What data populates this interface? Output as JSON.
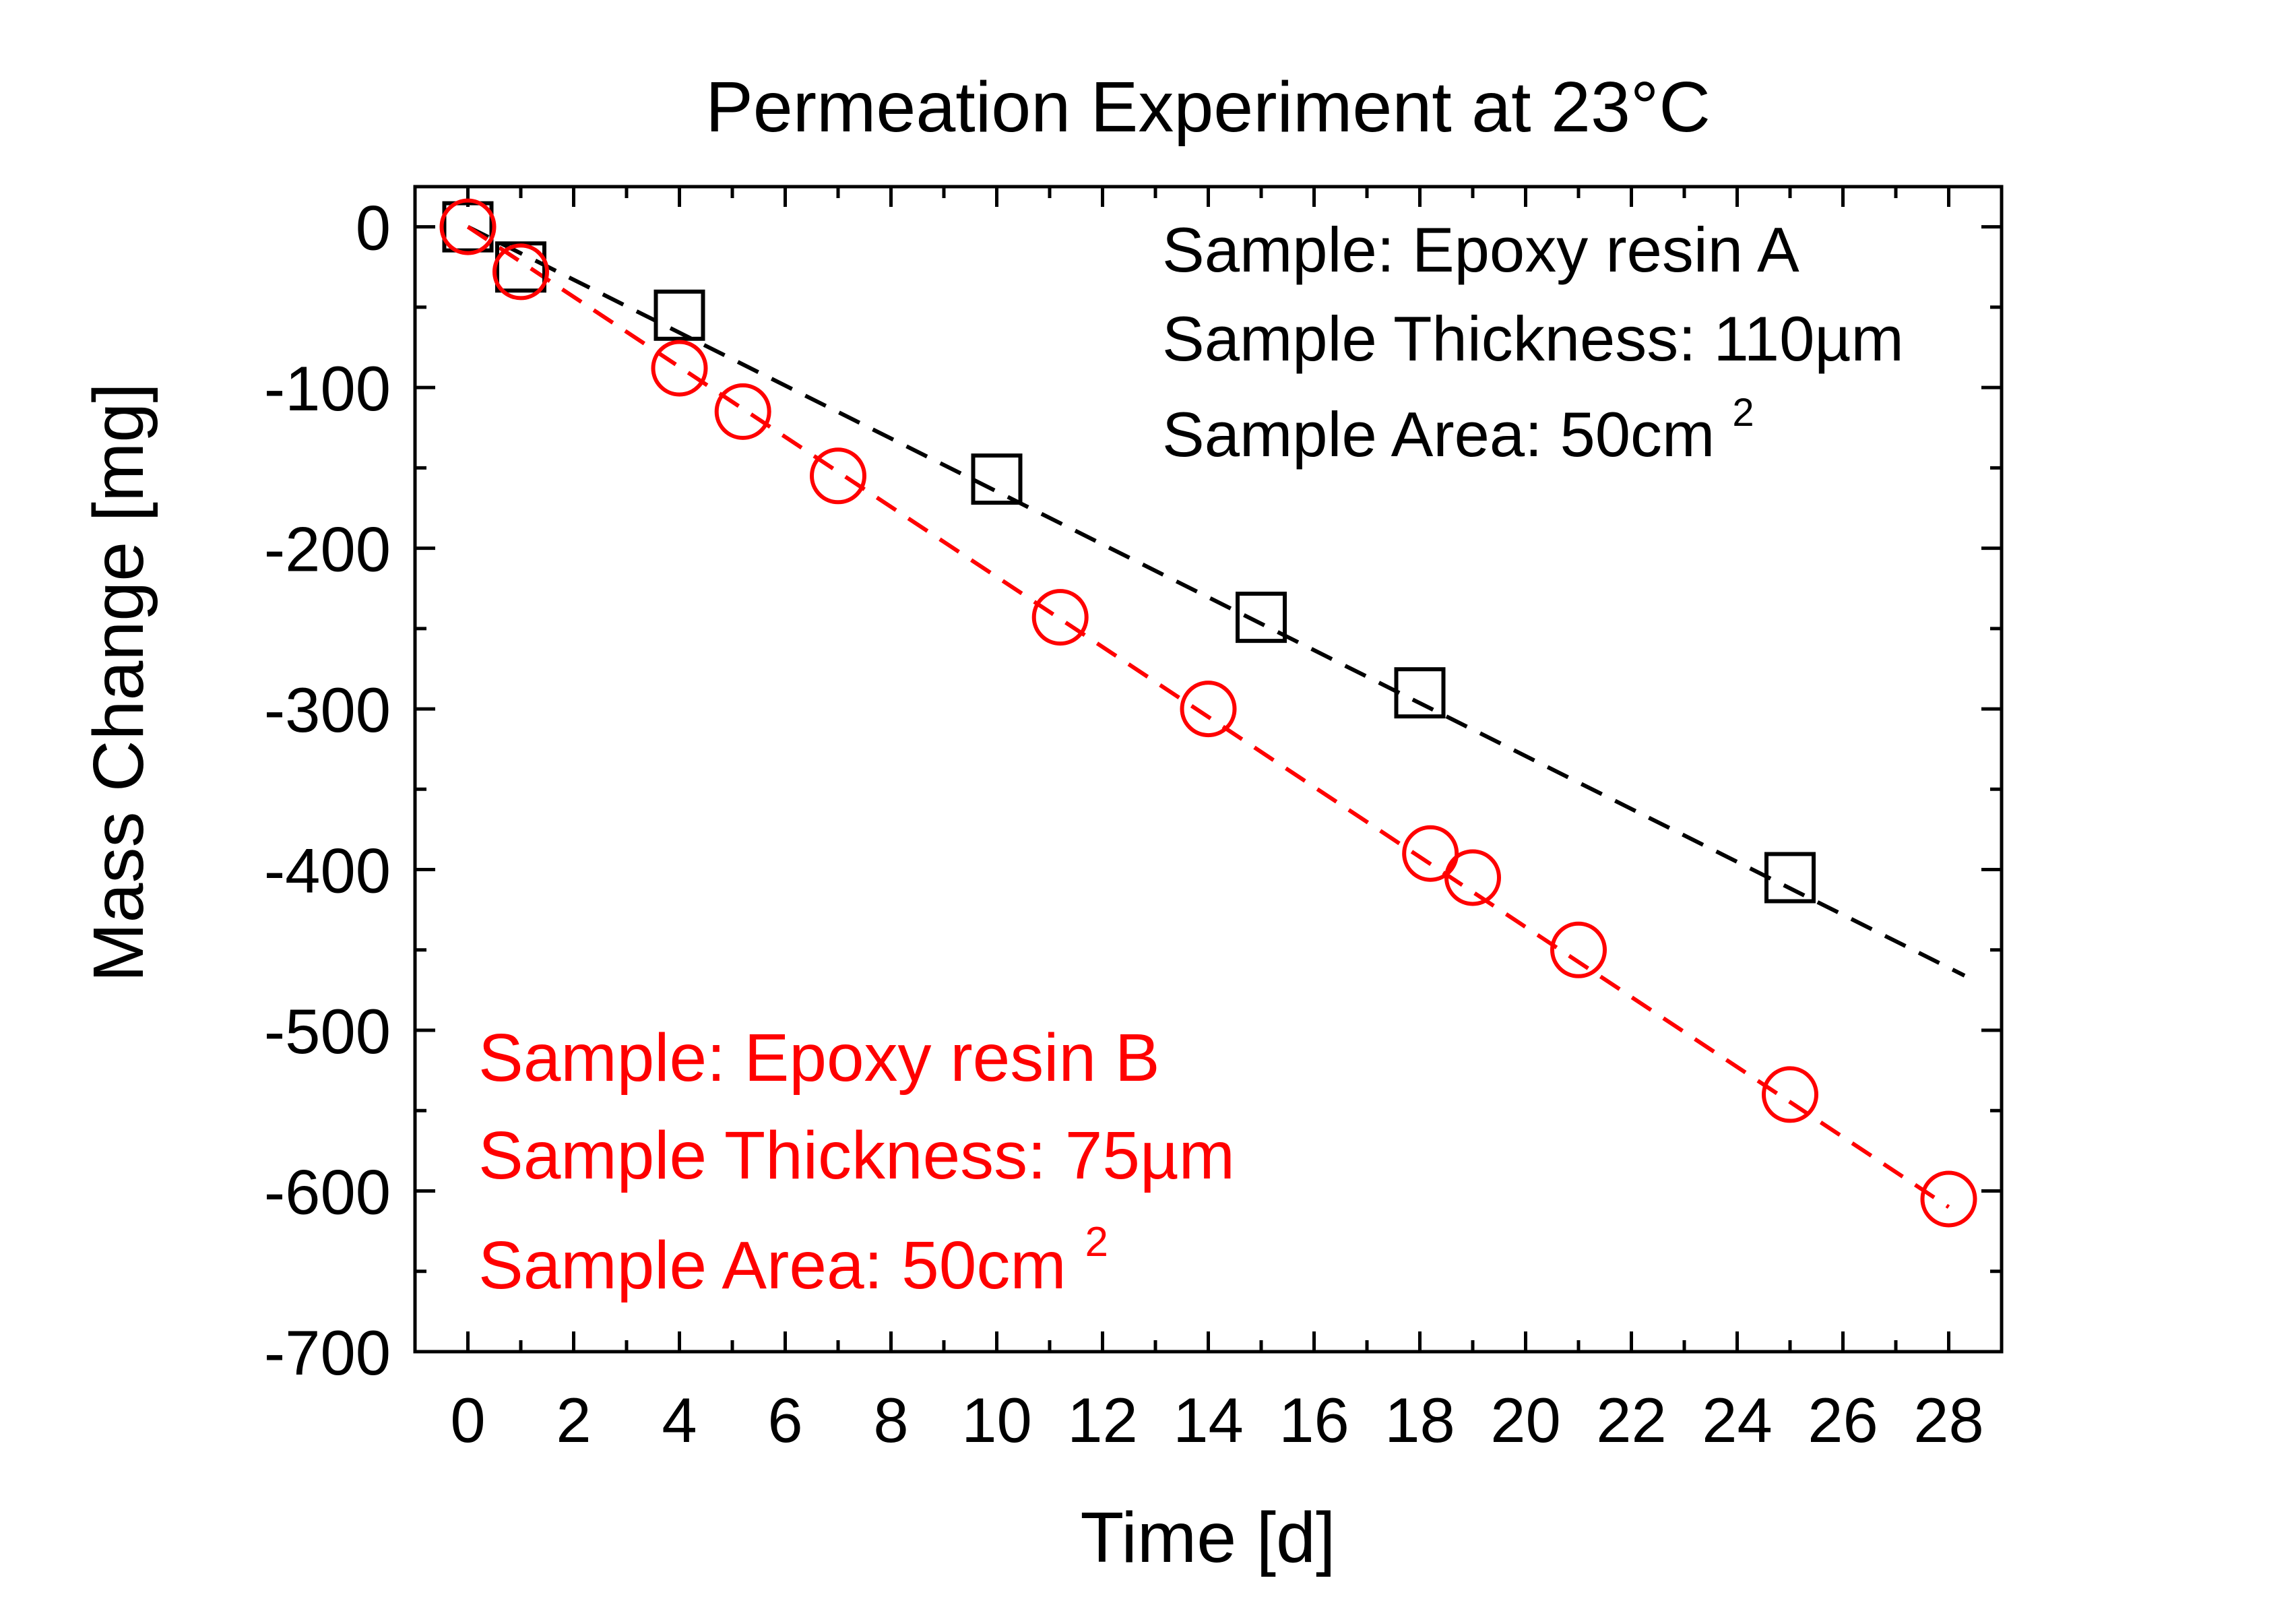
{
  "chart_data": {
    "type": "scatter",
    "title": "Permeation Experiment at 23°C",
    "xlabel": "Time [d]",
    "ylabel": "Mass Change [mg]",
    "xlim": [
      -1,
      29
    ],
    "ylim": [
      -700,
      25
    ],
    "xticks": [
      0,
      2,
      4,
      6,
      8,
      10,
      12,
      14,
      16,
      18,
      20,
      22,
      24,
      26,
      28
    ],
    "yticks": [
      0,
      -100,
      -200,
      -300,
      -400,
      -500,
      -600,
      -700
    ],
    "grid": false,
    "series": [
      {
        "marker": "square",
        "color": "#000000",
        "x": [
          0,
          1,
          4,
          10,
          15,
          18,
          25
        ],
        "y": [
          0,
          -25,
          -55,
          -157,
          -243,
          -290,
          -405
        ],
        "fit_x": [
          0,
          28.3
        ],
        "fit_y": [
          0,
          -466
        ]
      },
      {
        "marker": "circle",
        "color": "#ff0000",
        "x": [
          0,
          1,
          4,
          5.2,
          7,
          11.2,
          14,
          18.2,
          19,
          21,
          25,
          28
        ],
        "y": [
          0,
          -28,
          -88,
          -115,
          -155,
          -243,
          -300,
          -390,
          -405,
          -450,
          -540,
          -605
        ],
        "fit_x": [
          0,
          28
        ],
        "fit_y": [
          0,
          -610
        ]
      }
    ],
    "annotations": {
      "a": {
        "color": "#000000",
        "line1": "Sample: Epoxy resin A",
        "line2": "Sample Thickness: 110µm",
        "line3": "Sample Area: 50cm",
        "line3_sup": "2"
      },
      "b": {
        "color": "#ff0000",
        "line1": "Sample: Epoxy resin B",
        "line2": "Sample Thickness: 75µm",
        "line3": "Sample Area: 50cm",
        "line3_sup": "2"
      }
    }
  }
}
